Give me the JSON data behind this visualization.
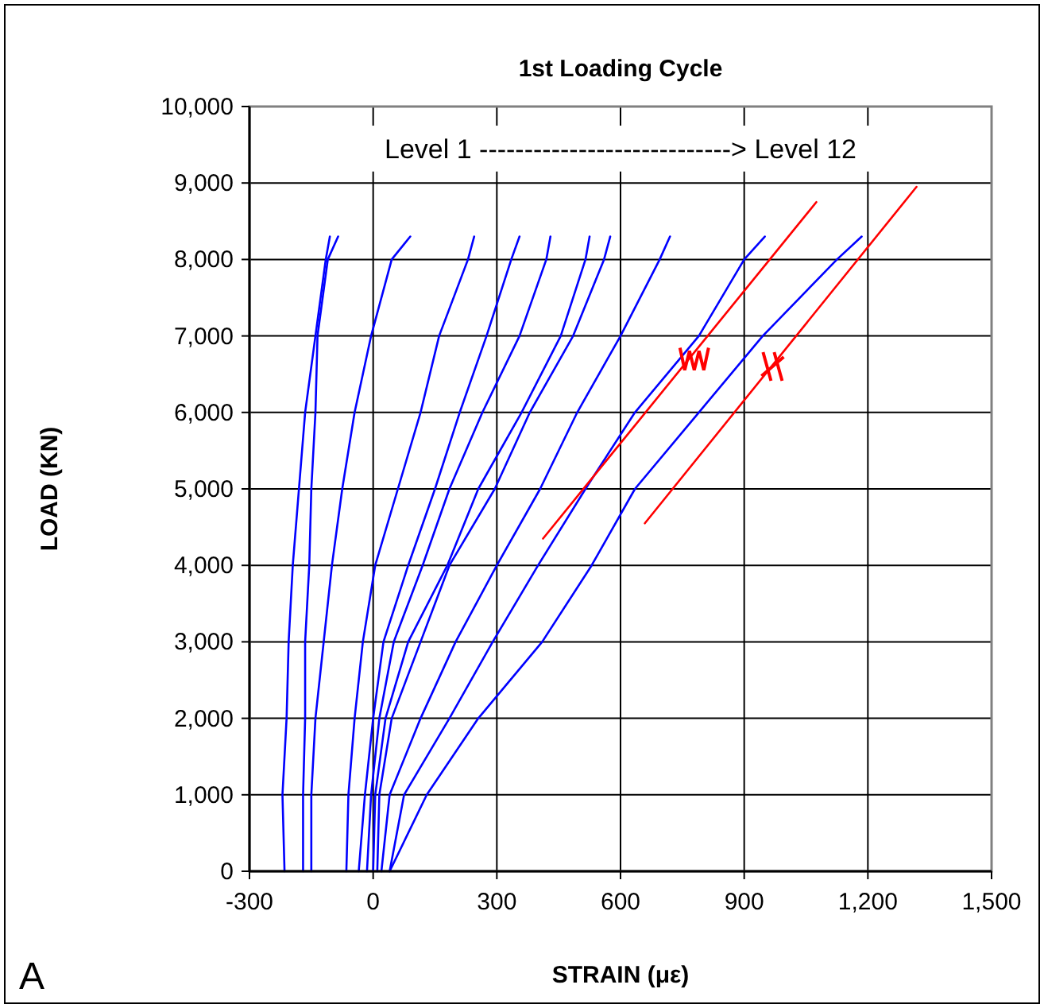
{
  "chart_data": {
    "type": "line",
    "title": "1st Loading Cycle",
    "xlabel": "STRAIN  (με)",
    "ylabel": "LOAD  (KN)",
    "annotations": [
      "Level 1 ----------------------------> Level 12",
      "A"
    ],
    "xlim": [
      -300,
      1500
    ],
    "xticks": [
      -300,
      0,
      300,
      600,
      900,
      {
        "value": 1200,
        "label": "1,200"
      },
      {
        "value": 1500,
        "label": "1,500"
      }
    ],
    "ylim": [
      0,
      10000
    ],
    "yticks": [
      0,
      {
        "value": 1000,
        "label": "1,000"
      },
      {
        "value": 2000,
        "label": "2,000"
      },
      {
        "value": 3000,
        "label": "3,000"
      },
      {
        "value": 4000,
        "label": "4,000"
      },
      {
        "value": 5000,
        "label": "5,000"
      },
      {
        "value": 6000,
        "label": "6,000"
      },
      {
        "value": 7000,
        "label": "7,000"
      },
      {
        "value": 8000,
        "label": "8,000"
      },
      {
        "value": 9000,
        "label": "9,000"
      },
      {
        "value": 10000,
        "label": "10,000"
      }
    ],
    "grid": true,
    "marker": "none",
    "line_style": "solid",
    "series": [
      {
        "color": "#0000ff",
        "x": [
          -215,
          -220,
          -210,
          -205,
          -195,
          -180,
          -165,
          -140,
          -115,
          -105
        ],
        "values": [
          0,
          1000,
          2000,
          3000,
          4000,
          5000,
          6000,
          7000,
          8000,
          8300
        ]
      },
      {
        "color": "#0000ff",
        "x": [
          -170,
          -170,
          -165,
          -165,
          -155,
          -150,
          -140,
          -135,
          -110,
          -85
        ],
        "values": [
          0,
          1000,
          2000,
          3000,
          4000,
          5000,
          6000,
          7000,
          8000,
          8300
        ]
      },
      {
        "color": "#0000ff",
        "x": [
          -150,
          -150,
          -140,
          -120,
          -100,
          -75,
          -45,
          -5,
          45,
          90
        ],
        "values": [
          0,
          1000,
          2000,
          3000,
          4000,
          5000,
          6000,
          7000,
          8000,
          8300
        ]
      },
      {
        "color": "#0000ff",
        "x": [
          -65,
          -60,
          -45,
          -25,
          5,
          60,
          115,
          160,
          230,
          245
        ],
        "values": [
          0,
          1000,
          2000,
          3000,
          4000,
          5000,
          6000,
          7000,
          8000,
          8300
        ]
      },
      {
        "color": "#0000ff",
        "x": [
          -35,
          -20,
          0,
          25,
          85,
          150,
          210,
          275,
          335,
          355
        ],
        "values": [
          0,
          1000,
          2000,
          3000,
          4000,
          5000,
          6000,
          7000,
          8000,
          8300
        ]
      },
      {
        "color": "#0000ff",
        "x": [
          -15,
          -5,
          15,
          50,
          120,
          185,
          265,
          355,
          420,
          430
        ],
        "values": [
          0,
          1000,
          2000,
          3000,
          4000,
          5000,
          6000,
          7000,
          8000,
          8300
        ]
      },
      {
        "color": "#0000ff",
        "x": [
          0,
          5,
          30,
          85,
          180,
          255,
          360,
          455,
          515,
          525
        ],
        "values": [
          0,
          1000,
          2000,
          3000,
          4000,
          5000,
          6000,
          7000,
          8000,
          8300
        ]
      },
      {
        "color": "#0000ff",
        "x": [
          10,
          15,
          45,
          115,
          185,
          295,
          380,
          485,
          560,
          575
        ],
        "values": [
          0,
          1000,
          2000,
          3000,
          4000,
          5000,
          6000,
          7000,
          8000,
          8300
        ]
      },
      {
        "color": "#0000ff",
        "x": [
          20,
          40,
          115,
          200,
          300,
          405,
          495,
          600,
          695,
          720
        ],
        "values": [
          0,
          1000,
          2000,
          3000,
          4000,
          5000,
          6000,
          7000,
          8000,
          8300
        ]
      },
      {
        "color": "#0000ff",
        "x": [
          40,
          75,
          185,
          290,
          400,
          515,
          635,
          790,
          900,
          950
        ],
        "values": [
          0,
          1000,
          2000,
          3000,
          4000,
          5000,
          6000,
          7000,
          8000,
          8300
        ]
      },
      {
        "color": "#0000ff",
        "x": [
          40,
          130,
          255,
          410,
          530,
          635,
          790,
          945,
          1125,
          1185
        ],
        "values": [
          0,
          1000,
          2000,
          3000,
          4000,
          5000,
          6000,
          7000,
          8000,
          8300
        ]
      },
      {
        "color": "#ff0000",
        "x": [
          412,
          1075
        ],
        "values": [
          4350,
          8750
        ]
      },
      {
        "color": "#ff0000",
        "x": [
          659,
          1318
        ],
        "values": [
          4550,
          8950
        ]
      }
    ]
  }
}
